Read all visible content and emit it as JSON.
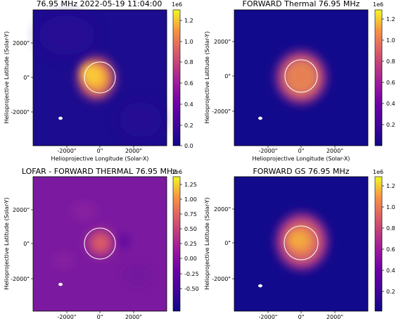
{
  "panels": [
    {
      "id": "lofar",
      "title": "76.95 MHz 2022-05-19 11:04:00",
      "xlabel": "Helioprojective Longitude (Solar-X)",
      "ylabel": "Helioprojective Latitude (Solar-Y)",
      "x_ticks": [
        "-2000\"",
        "0\"",
        "2000\""
      ],
      "y_ticks": [
        "2000\"",
        "0\"",
        "-2000\""
      ],
      "colorbar": {
        "exponent": "1e6",
        "ticks": [
          "1.2",
          "1.0",
          "0.8",
          "0.6",
          "0.4",
          "0.2",
          "0.0"
        ],
        "colormap": "plasma"
      }
    },
    {
      "id": "forward-thermal",
      "title": "FORWARD Thermal 76.95 MHz",
      "xlabel": "Helioprojective Longitude (Solar-X)",
      "ylabel": "Helioprojective Latitude (Solar-Y)",
      "x_ticks": [
        "-2000\"",
        "0\"",
        "2000\""
      ],
      "y_ticks": [
        "2000\"",
        "0\"",
        "-2000\""
      ],
      "colorbar": {
        "exponent": "1e6",
        "ticks": [
          "1.2",
          "1.0",
          "0.8",
          "0.6",
          "0.4",
          "0.2"
        ],
        "colormap": "plasma"
      }
    },
    {
      "id": "difference",
      "title": "LOFAR - FORWARD THERMAL 76.95 MHz",
      "xlabel": "",
      "ylabel": "Helioprojective Latitude (Solar-Y)",
      "x_ticks": [
        "-2000\"",
        "0\"",
        "2000\""
      ],
      "y_ticks": [
        "2000\"",
        "0\"",
        "-2000\""
      ],
      "colorbar": {
        "exponent": "1e6",
        "ticks": [
          "1.25",
          "1.00",
          "0.75",
          "0.50",
          "0.25",
          "0.00",
          "-0.25",
          "-0.50"
        ],
        "colormap": "plasma"
      }
    },
    {
      "id": "forward-gs",
      "title": "FORWARD GS 76.95 MHz",
      "xlabel": "",
      "ylabel": "Helioprojective Latitude (Solar-Y)",
      "x_ticks": [
        "-2000\"",
        "0\"",
        "2000\""
      ],
      "y_ticks": [
        "2000\"",
        "0\"",
        "-2000\""
      ],
      "colorbar": {
        "exponent": "1e6",
        "ticks": [
          "1.2",
          "1.0",
          "0.8",
          "0.6",
          "0.4",
          "0.2"
        ],
        "colormap": "plasma"
      }
    }
  ],
  "chart_data": [
    {
      "type": "heatmap",
      "title": "76.95 MHz 2022-05-19 11:04:00",
      "xlabel": "Helioprojective Longitude (Solar-X)",
      "ylabel": "Helioprojective Latitude (Solar-Y)",
      "xlim": [
        -4000,
        4000
      ],
      "ylim": [
        -4000,
        4000
      ],
      "colorbar_range": [
        0.0,
        1.3
      ],
      "colorbar_scale": "1e6",
      "source_peak": {
        "x": -100,
        "y": 100,
        "value": 1.25
      },
      "solar_limb_radius": 960,
      "beam": {
        "x": -2350,
        "y": -2350
      }
    },
    {
      "type": "heatmap",
      "title": "FORWARD Thermal 76.95 MHz",
      "xlabel": "Helioprojective Longitude (Solar-X)",
      "ylabel": "Helioprojective Latitude (Solar-Y)",
      "xlim": [
        -4000,
        4000
      ],
      "ylim": [
        -4000,
        4000
      ],
      "colorbar_range": [
        0.03,
        1.3
      ],
      "colorbar_scale": "1e6",
      "source_peak": {
        "x": 0,
        "y": 0,
        "value": 0.85
      },
      "solar_limb_radius": 960,
      "beam": {
        "x": -2350,
        "y": -2350
      }
    },
    {
      "type": "heatmap",
      "title": "LOFAR - FORWARD THERMAL 76.95 MHz",
      "xlim": [
        -4000,
        4000
      ],
      "ylim": [
        -4000,
        4000
      ],
      "colorbar_range": [
        -0.6,
        1.3
      ],
      "colorbar_scale": "1e6",
      "source_peak": {
        "x": 0,
        "y": 100,
        "value": 0.6
      },
      "solar_limb_radius": 960,
      "beam": {
        "x": -2350,
        "y": -2350
      }
    },
    {
      "type": "heatmap",
      "title": "FORWARD GS 76.95 MHz",
      "xlim": [
        -4000,
        4000
      ],
      "ylim": [
        -4000,
        4000
      ],
      "colorbar_range": [
        0.03,
        1.3
      ],
      "colorbar_scale": "1e6",
      "source_peak": {
        "x": 0,
        "y": 0,
        "value": 1.1
      },
      "solar_limb_radius": 960,
      "beam": {
        "x": -2350,
        "y": -2350
      }
    }
  ]
}
